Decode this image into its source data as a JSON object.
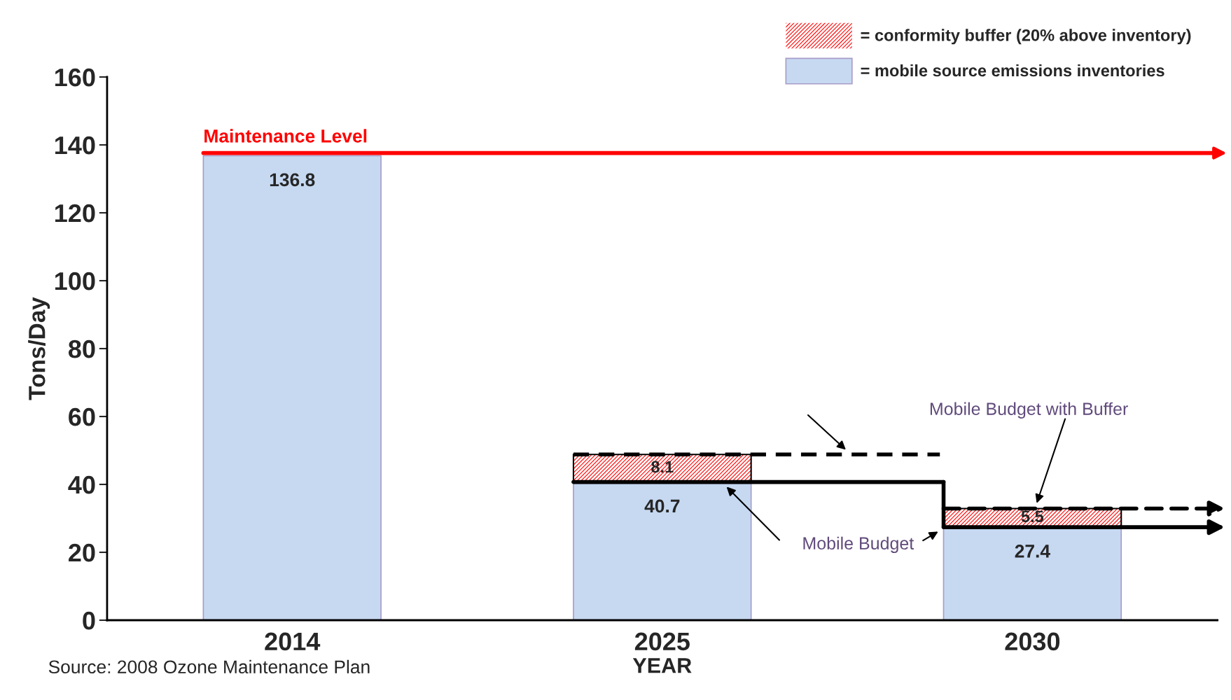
{
  "chart_data": {
    "type": "bar",
    "stacked": true,
    "categories": [
      "2014",
      "2025",
      "2030"
    ],
    "series": [
      {
        "name": "= mobile source emissions inventories",
        "color": "#c6d9f1",
        "values": [
          136.8,
          40.7,
          27.4
        ],
        "value_labels": [
          "136.8",
          "40.7",
          "27.4"
        ]
      },
      {
        "name": "= conformity buffer (20% above inventory)",
        "color": "#ff0000",
        "values": [
          null,
          8.1,
          5.5
        ],
        "value_labels": [
          null,
          "8.1",
          "5.5"
        ]
      }
    ],
    "ylim": [
      0,
      160
    ],
    "yticks": [
      0,
      20,
      40,
      60,
      80,
      100,
      120,
      140,
      160
    ],
    "xlabel": "YEAR",
    "ylabel": "Tons/Day",
    "ref_lines": [
      {
        "axis": "y",
        "value": 137.6,
        "label": "Maintenance Level",
        "color": "#ff0000"
      }
    ],
    "annotations": [
      "Source: 2008 Ozone Maintenance Plan",
      "Mobile Budget",
      "Mobile Budget with Buffer"
    ],
    "legend": "top right",
    "grid": false
  }
}
